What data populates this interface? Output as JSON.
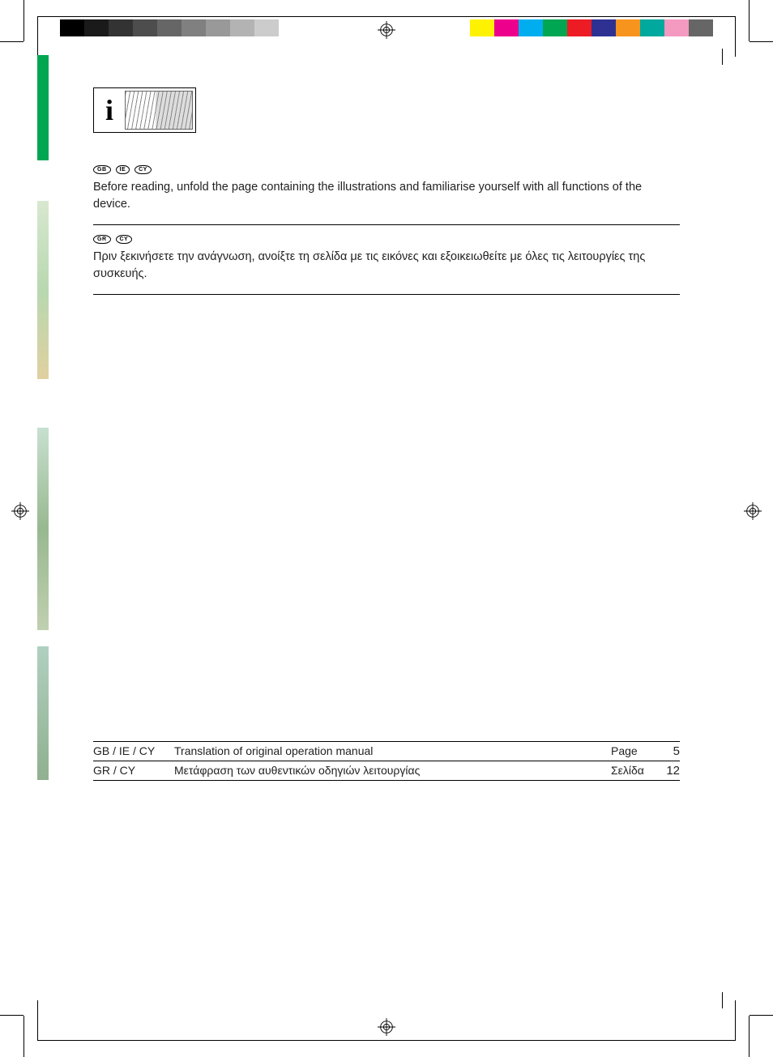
{
  "colorbars": {
    "left": [
      "#000000",
      "#1a1a1a",
      "#333333",
      "#4d4d4d",
      "#666666",
      "#808080",
      "#999999",
      "#b3b3b3",
      "#cccccc",
      "#ffffff"
    ],
    "right": [
      "#fff200",
      "#ec008c",
      "#00aeef",
      "#00a651",
      "#ed1c24",
      "#2e3192",
      "#f7941d",
      "#00a99d",
      "#f49ac1",
      "#666666"
    ]
  },
  "sections": [
    {
      "codes": [
        "GB",
        "IE",
        "CY"
      ],
      "text": "Before reading, unfold the page containing the illustrations and familiarise yourself with all functions of the device."
    },
    {
      "codes": [
        "GR",
        "CY"
      ],
      "text": "Πριν ξεκινήσετε την ανάγνωση, ανοίξτε τη σελίδα με τις εικόνες και εξοικειωθείτε με όλες τις λειτουργίες της συσκευής."
    }
  ],
  "toc": [
    {
      "codes": "GB / IE / CY",
      "desc": "Translation of original operation manual",
      "label": "Page",
      "page": "5"
    },
    {
      "codes": "GR / CY",
      "desc": "Μετάφραση των αυθεντικών οδηγιών λειτουργίας",
      "label": "Σελίδα",
      "page": "12"
    }
  ],
  "info_icon_char": "i"
}
